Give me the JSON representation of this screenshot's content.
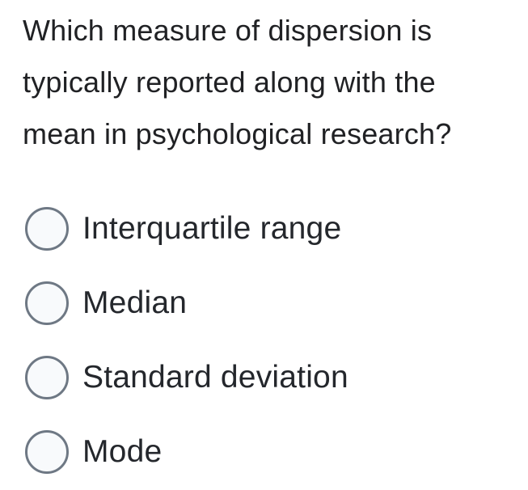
{
  "question": {
    "text": "Which measure of dispersion is typically reported along with the mean in psychological research?",
    "lines": [
      "Which measure of dispersion is",
      "typically reported along with the",
      "mean in psychological research?"
    ]
  },
  "options": [
    {
      "label": "Interquartile range",
      "selected": false
    },
    {
      "label": "Median",
      "selected": false
    },
    {
      "label": "Standard deviation",
      "selected": false
    },
    {
      "label": "Mode",
      "selected": false
    }
  ],
  "colors": {
    "text": "#202124",
    "label": "#24272c",
    "radio_border": "#6e7884",
    "radio_fill": "#f8fafc",
    "background": "#ffffff"
  }
}
